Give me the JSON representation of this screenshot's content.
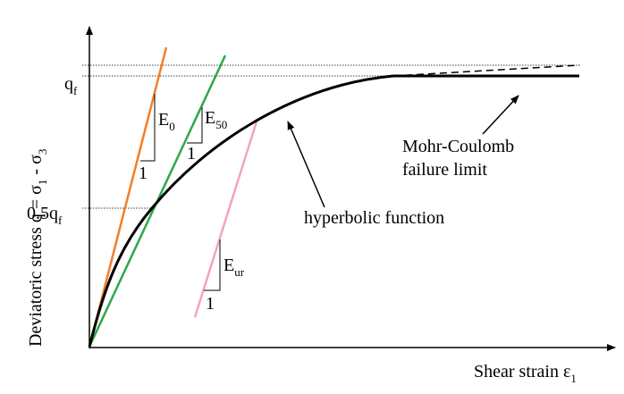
{
  "axes": {
    "y_label": {
      "text": "Deviatoric stress q = σ",
      "sub1": "1",
      "mid": " - σ",
      "sub2": "3"
    },
    "x_label": {
      "text": "Shear strain ε",
      "sub": "1"
    },
    "qf": {
      "text": "q",
      "sub": "f"
    },
    "half_qf": {
      "text": "0.5q",
      "sub": "f"
    }
  },
  "moduli": [
    {
      "symbol": "E",
      "sub": "0",
      "unit": "1"
    },
    {
      "symbol": "E",
      "sub": "50",
      "unit": "1"
    },
    {
      "symbol": "E",
      "sub": "ur",
      "unit": "1"
    }
  ],
  "annotations": {
    "hyperbolic": "hyperbolic function",
    "mohr_line1": "Mohr-Coulomb",
    "mohr_line2": "failure limit"
  }
}
